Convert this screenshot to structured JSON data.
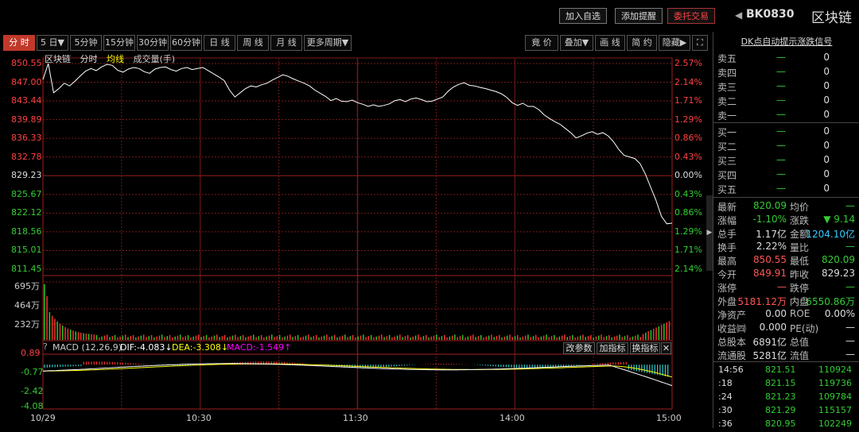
{
  "header": {
    "buttons": [
      {
        "label": "加入自选",
        "name": "add-watchlist-button"
      },
      {
        "label": "添加提醒",
        "name": "add-alert-button"
      },
      {
        "label": "委托交易",
        "name": "trade-order-button"
      }
    ],
    "code": "BK0830",
    "name": "区块链"
  },
  "tabs": [
    {
      "label": "分 时",
      "active": true
    },
    {
      "label": "5 日▼"
    },
    {
      "label": "5分钟"
    },
    {
      "label": "15分钟"
    },
    {
      "label": "30分钟"
    },
    {
      "label": "60分钟"
    },
    {
      "label": "日 线"
    },
    {
      "label": "周 线"
    },
    {
      "label": "月 线"
    },
    {
      "label": "更多周期▼"
    }
  ],
  "right_tabs": [
    {
      "label": "竟 价"
    },
    {
      "label": "叠加▼"
    },
    {
      "label": "画 线"
    },
    {
      "label": "简 约"
    },
    {
      "label": "隐藏▶"
    }
  ],
  "chart_legend": {
    "name": "区块链",
    "fenshi": "分时",
    "avg": "均线",
    "vol": "成交量(手)"
  },
  "price_axis": [
    "850.55",
    "847.00",
    "843.44",
    "839.89",
    "836.33",
    "832.78",
    "829.23",
    "825.67",
    "822.12",
    "818.56",
    "815.01",
    "811.45"
  ],
  "pct_axis": [
    "2.57%",
    "2.14%",
    "1.71%",
    "1.29%",
    "0.86%",
    "0.43%",
    "0.00%",
    "0.43%",
    "0.86%",
    "1.29%",
    "1.71%",
    "2.14%"
  ],
  "vol_axis": [
    "695万",
    "464万",
    "232万"
  ],
  "time_axis": [
    "10/29",
    "10:30",
    "11:30",
    "14:00",
    "15:00"
  ],
  "macd": {
    "label": "MACD (12,26,9)",
    "dif": "DIF:-4.083↓",
    "dea": "DEA:-3.308↓",
    "macd": "MACD:-1.549↑",
    "axis": [
      "0.89",
      "-0.77",
      "-2.42",
      "-4.08"
    ],
    "buttons": [
      "改参数",
      "加指标",
      "换指标"
    ]
  },
  "chart_data": {
    "type": "line",
    "prev_close": 829.23,
    "ylim": [
      811.45,
      850.55
    ],
    "price_series": [
      847.5,
      850.55,
      845,
      845.8,
      846.8,
      846.3,
      847.2,
      848.2,
      849.1,
      849.6,
      849.2,
      849.9,
      850.4,
      850.2,
      849.3,
      848.9,
      849.5,
      849.8,
      849.6,
      849,
      848.7,
      849.5,
      849.8,
      849.9,
      849.4,
      849.1,
      849.6,
      849.8,
      849.4,
      849.6,
      849.8,
      849.2,
      848.6,
      848,
      847.3,
      845.5,
      844.2,
      845,
      845.8,
      846.3,
      846.1,
      846.5,
      846.8,
      847.4,
      847.9,
      848.4,
      848.1,
      847.6,
      847.2,
      846.8,
      846.3,
      845.5,
      844.9,
      844.3,
      843.5,
      843.9,
      843.4,
      843.3,
      843.6,
      843.1,
      842.8,
      842.4,
      842.7,
      842.4,
      842.6,
      842.9,
      843.5,
      843.7,
      843.3,
      843.8,
      844,
      843.7,
      843.3,
      843.4,
      843.8,
      844.2,
      845.3,
      846.1,
      846.6,
      846.9,
      846.4,
      846.3,
      846,
      845.8,
      845.5,
      845.2,
      844.8,
      844.1,
      843.1,
      842.6,
      843,
      842.4,
      842.4,
      841.8,
      840.8,
      840.1,
      839.5,
      839,
      838.2,
      837.4,
      836.4,
      836.8,
      837.3,
      837.6,
      837.1,
      837.4,
      836.8,
      835.7,
      834.2,
      833.1,
      832.8,
      832.5,
      831.5,
      829.5,
      827,
      824.5,
      821.5,
      820.09,
      820.2
    ],
    "avg_series": [],
    "volume_axis_max": 695
  },
  "order_book": {
    "title": "DK点自动提示涨跌信号",
    "sell": [
      {
        "label": "卖五",
        "price": "—",
        "vol": "0"
      },
      {
        "label": "卖四",
        "price": "—",
        "vol": "0"
      },
      {
        "label": "卖三",
        "price": "—",
        "vol": "0"
      },
      {
        "label": "卖二",
        "price": "—",
        "vol": "0"
      },
      {
        "label": "卖一",
        "price": "—",
        "vol": "0"
      }
    ],
    "buy": [
      {
        "label": "买一",
        "price": "—",
        "vol": "0"
      },
      {
        "label": "买二",
        "price": "—",
        "vol": "0"
      },
      {
        "label": "买三",
        "price": "—",
        "vol": "0"
      },
      {
        "label": "买四",
        "price": "—",
        "vol": "0"
      },
      {
        "label": "买五",
        "price": "—",
        "vol": "0"
      }
    ]
  },
  "quote": [
    {
      "l1": "最新",
      "v1": "820.09",
      "c1": "#3c3",
      "l2": "均价",
      "v2": "—",
      "c2": "#3c3"
    },
    {
      "l1": "涨幅",
      "v1": "-1.10%",
      "c1": "#3c3",
      "l2": "涨跌",
      "v2": "▼ 9.14",
      "c2": "#3c3"
    },
    {
      "l1": "总手",
      "v1": "1.17亿",
      "c1": "#ddd",
      "l2": "金额",
      "v2": "1204.10亿",
      "c2": "#3cf"
    },
    {
      "l1": "换手",
      "v1": "2.22%",
      "c1": "#ddd",
      "l2": "量比",
      "v2": "—",
      "c2": "#3c3"
    },
    {
      "l1": "最高",
      "v1": "850.55",
      "c1": "#f55",
      "l2": "最低",
      "v2": "820.09",
      "c2": "#3c3"
    },
    {
      "l1": "今开",
      "v1": "849.91",
      "c1": "#f55",
      "l2": "昨收",
      "v2": "829.23",
      "c2": "#ddd"
    },
    {
      "l1": "涨停",
      "v1": "—",
      "c1": "#f55",
      "l2": "跌停",
      "v2": "—",
      "c2": "#3c3"
    },
    {
      "l1": "外盘",
      "v1": "5181.12万",
      "c1": "#f55",
      "l2": "内盘",
      "v2": "6550.86万",
      "c2": "#3c3"
    },
    {
      "l1": "净资产",
      "v1": "0.00",
      "c1": "#ddd",
      "l2": "ROE",
      "v2": "0.00%",
      "c2": "#ddd"
    },
    {
      "l1": "收益㈣",
      "v1": "0.000",
      "c1": "#ddd",
      "l2": "PE(动)",
      "v2": "—",
      "c2": "#ddd"
    },
    {
      "l1": "总股本",
      "v1": "6891亿",
      "c1": "#ddd",
      "l2": "总值",
      "v2": "—",
      "c2": "#ddd"
    },
    {
      "l1": "流通股",
      "v1": "5281亿",
      "c1": "#ddd",
      "l2": "流值",
      "v2": "—",
      "c2": "#ddd"
    }
  ],
  "ticks": [
    {
      "t": "14:56",
      "p": "821.51",
      "v": "110924"
    },
    {
      "t": ":18",
      "p": "821.15",
      "v": "119736"
    },
    {
      "t": ":24",
      "p": "821.23",
      "v": "109784"
    },
    {
      "t": ":30",
      "p": "821.29",
      "v": "115157"
    },
    {
      "t": ":36",
      "p": "820.95",
      "v": "102249"
    }
  ],
  "colors": {
    "up": "#ff4040",
    "down": "#33cc33",
    "grid": "#7a1a1a",
    "price_line": "#ffffff",
    "dif": "#ffffff",
    "dea": "#ffff00"
  }
}
